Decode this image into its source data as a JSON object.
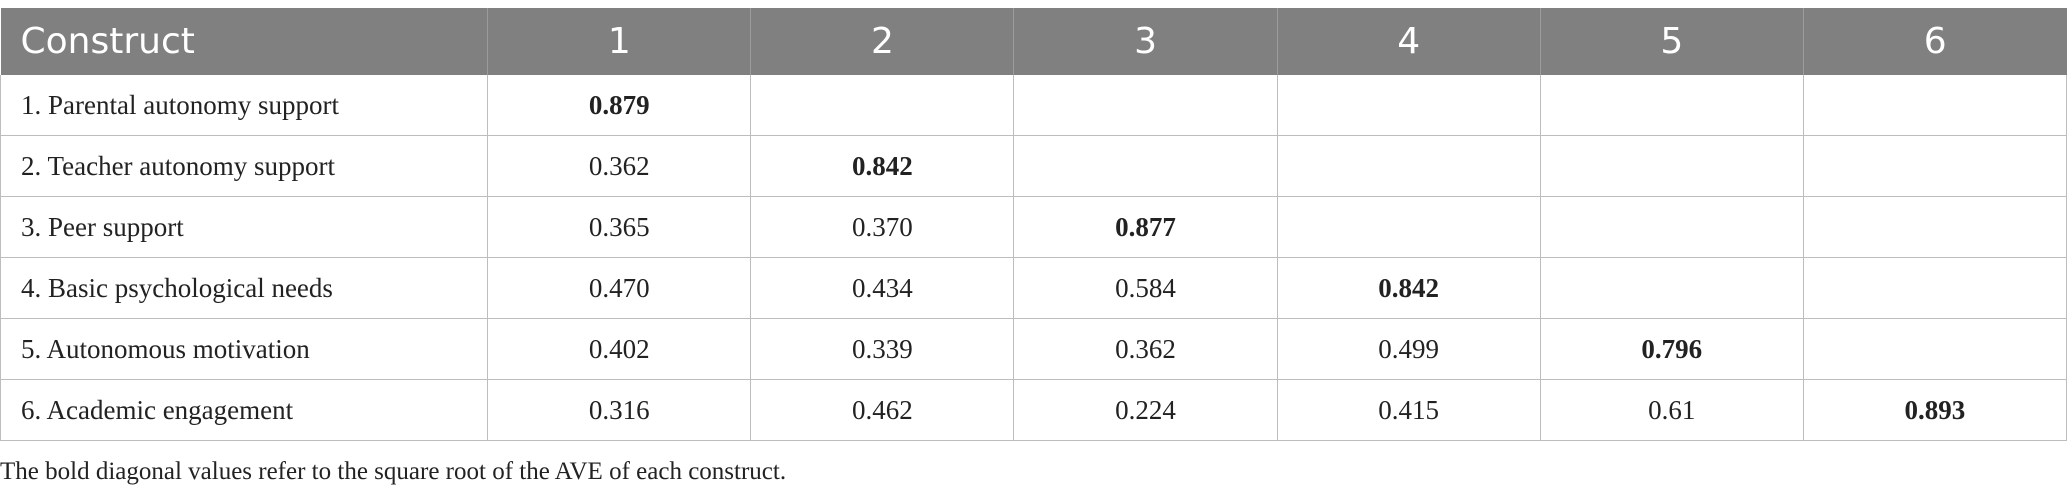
{
  "table": {
    "headers": [
      "Construct",
      "1",
      "2",
      "3",
      "4",
      "5",
      "6"
    ],
    "rows": [
      {
        "label": "1. Parental autonomy support",
        "cells": [
          "0.879",
          "",
          "",
          "",
          "",
          ""
        ]
      },
      {
        "label": "2. Teacher autonomy support",
        "cells": [
          "0.362",
          "0.842",
          "",
          "",
          "",
          ""
        ]
      },
      {
        "label": "3. Peer support",
        "cells": [
          "0.365",
          "0.370",
          "0.877",
          "",
          "",
          ""
        ]
      },
      {
        "label": "4. Basic psychological needs",
        "cells": [
          "0.470",
          "0.434",
          "0.584",
          "0.842",
          "",
          ""
        ]
      },
      {
        "label": "5. Autonomous motivation",
        "cells": [
          "0.402",
          "0.339",
          "0.362",
          "0.499",
          "0.796",
          ""
        ]
      },
      {
        "label": "6. Academic engagement",
        "cells": [
          "0.316",
          "0.462",
          "0.224",
          "0.415",
          "0.61",
          "0.893"
        ]
      }
    ]
  },
  "footnote": "The bold diagonal values refer to the square root of the AVE of each construct.",
  "colors": {
    "header_bg": "#808080",
    "header_text": "#ffffff",
    "grid_line": "#bdbdbd"
  }
}
